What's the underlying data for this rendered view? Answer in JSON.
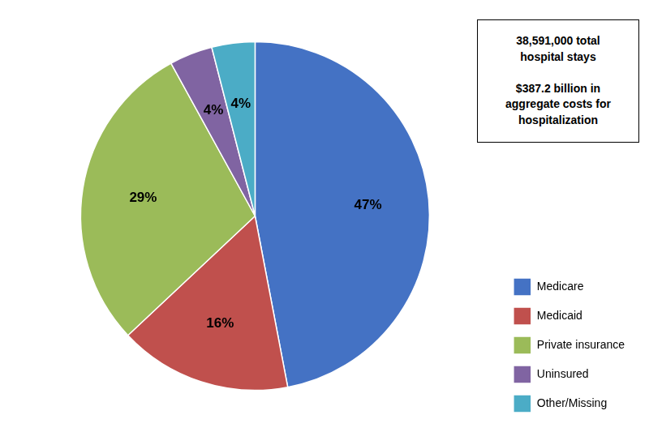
{
  "chart_data": {
    "type": "pie",
    "categories": [
      "Medicare",
      "Medicaid",
      "Private insurance",
      "Uninsured",
      "Other/Missing"
    ],
    "values": [
      47,
      16,
      29,
      4,
      4
    ],
    "value_labels": [
      "47%",
      "16%",
      "29%",
      "4%",
      "4%"
    ],
    "colors": [
      "#4472C4",
      "#C0504D",
      "#9BBB59",
      "#8064A2",
      "#4BACC6"
    ],
    "data_labels": true,
    "legend": "right",
    "annotation": "38,591,000 total\nhospital stays\n\n$387.2 billion in\naggregate costs for\nhospitalization"
  }
}
